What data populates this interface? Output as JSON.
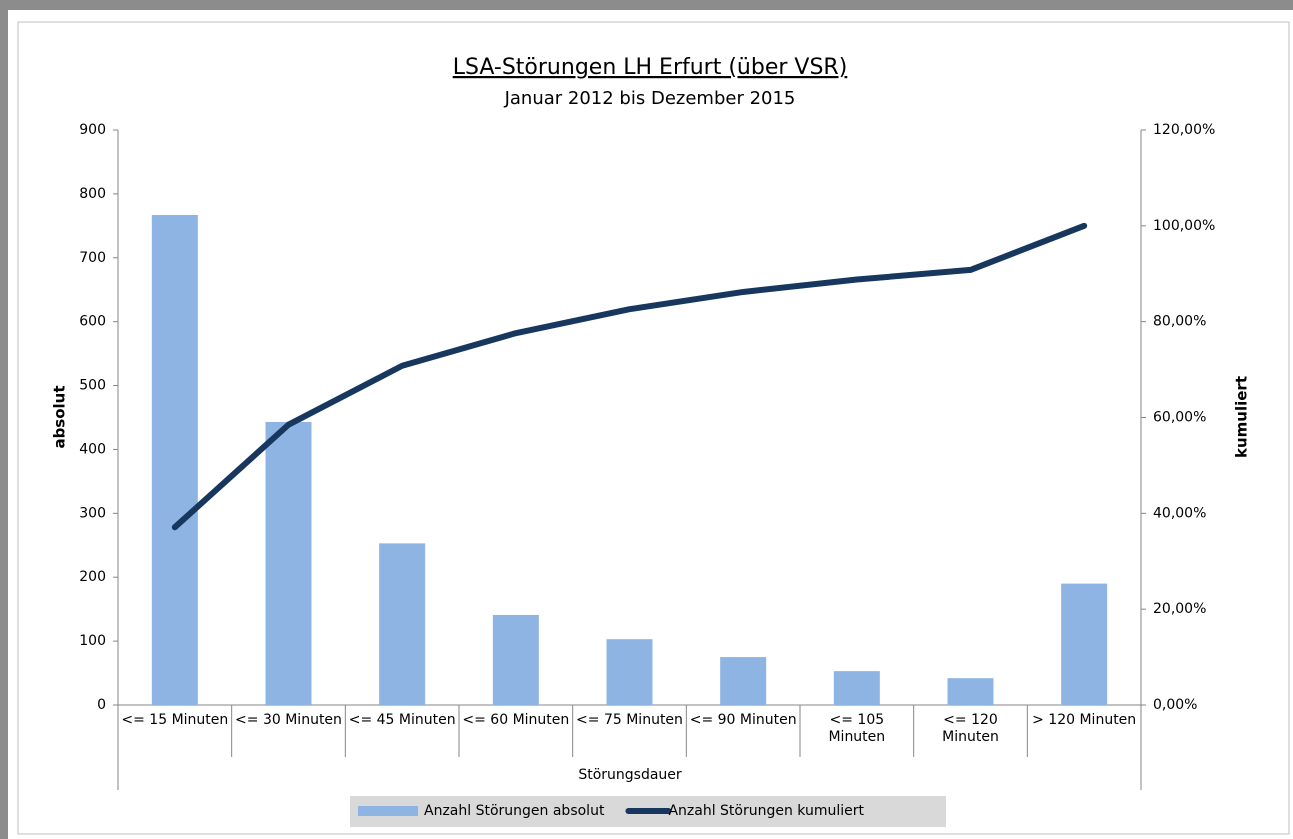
{
  "chart_data": {
    "type": "bar",
    "title": "LSA-Störungen LH Erfurt (über VSR)",
    "subtitle": "Januar 2012 bis Dezember 2015",
    "x_label": "Störungsdauer",
    "y_label": "absolut",
    "y2_label": "kumuliert",
    "categories": [
      "<= 15 Minuten",
      "<= 30 Minuten",
      "<= 45 Minuten",
      "<= 60 Minuten",
      "<= 75 Minuten",
      "<= 90 Minuten",
      "<= 105 Minuten",
      "<= 120 Minuten",
      "> 120 Minuten"
    ],
    "series": [
      {
        "name": "Anzahl Störungen absolut",
        "type": "bar",
        "color": "#8db4e2",
        "values": [
          767,
          443,
          253,
          141,
          103,
          75,
          53,
          42,
          190
        ]
      },
      {
        "name": "Anzahl Störungen kumuliert",
        "type": "line",
        "axis": "y2",
        "color": "#17375e",
        "values": [
          37.1,
          58.5,
          70.8,
          77.6,
          82.6,
          86.2,
          88.8,
          90.8,
          100
        ]
      }
    ],
    "ylim": [
      0,
      900
    ],
    "yticks": [
      0,
      100,
      200,
      300,
      400,
      500,
      600,
      700,
      800,
      900
    ],
    "y2lim": [
      0,
      120
    ],
    "y2ticks": [
      {
        "value": 0,
        "label": "0,00%"
      },
      {
        "value": 20,
        "label": "20,00%"
      },
      {
        "value": 40,
        "label": "40,00%"
      },
      {
        "value": 60,
        "label": "60,00%"
      },
      {
        "value": 80,
        "label": "80,00%"
      },
      {
        "value": 100,
        "label": "100,00%"
      },
      {
        "value": 120,
        "label": "120,00%"
      }
    ],
    "grid": false,
    "legend": "bottom"
  }
}
